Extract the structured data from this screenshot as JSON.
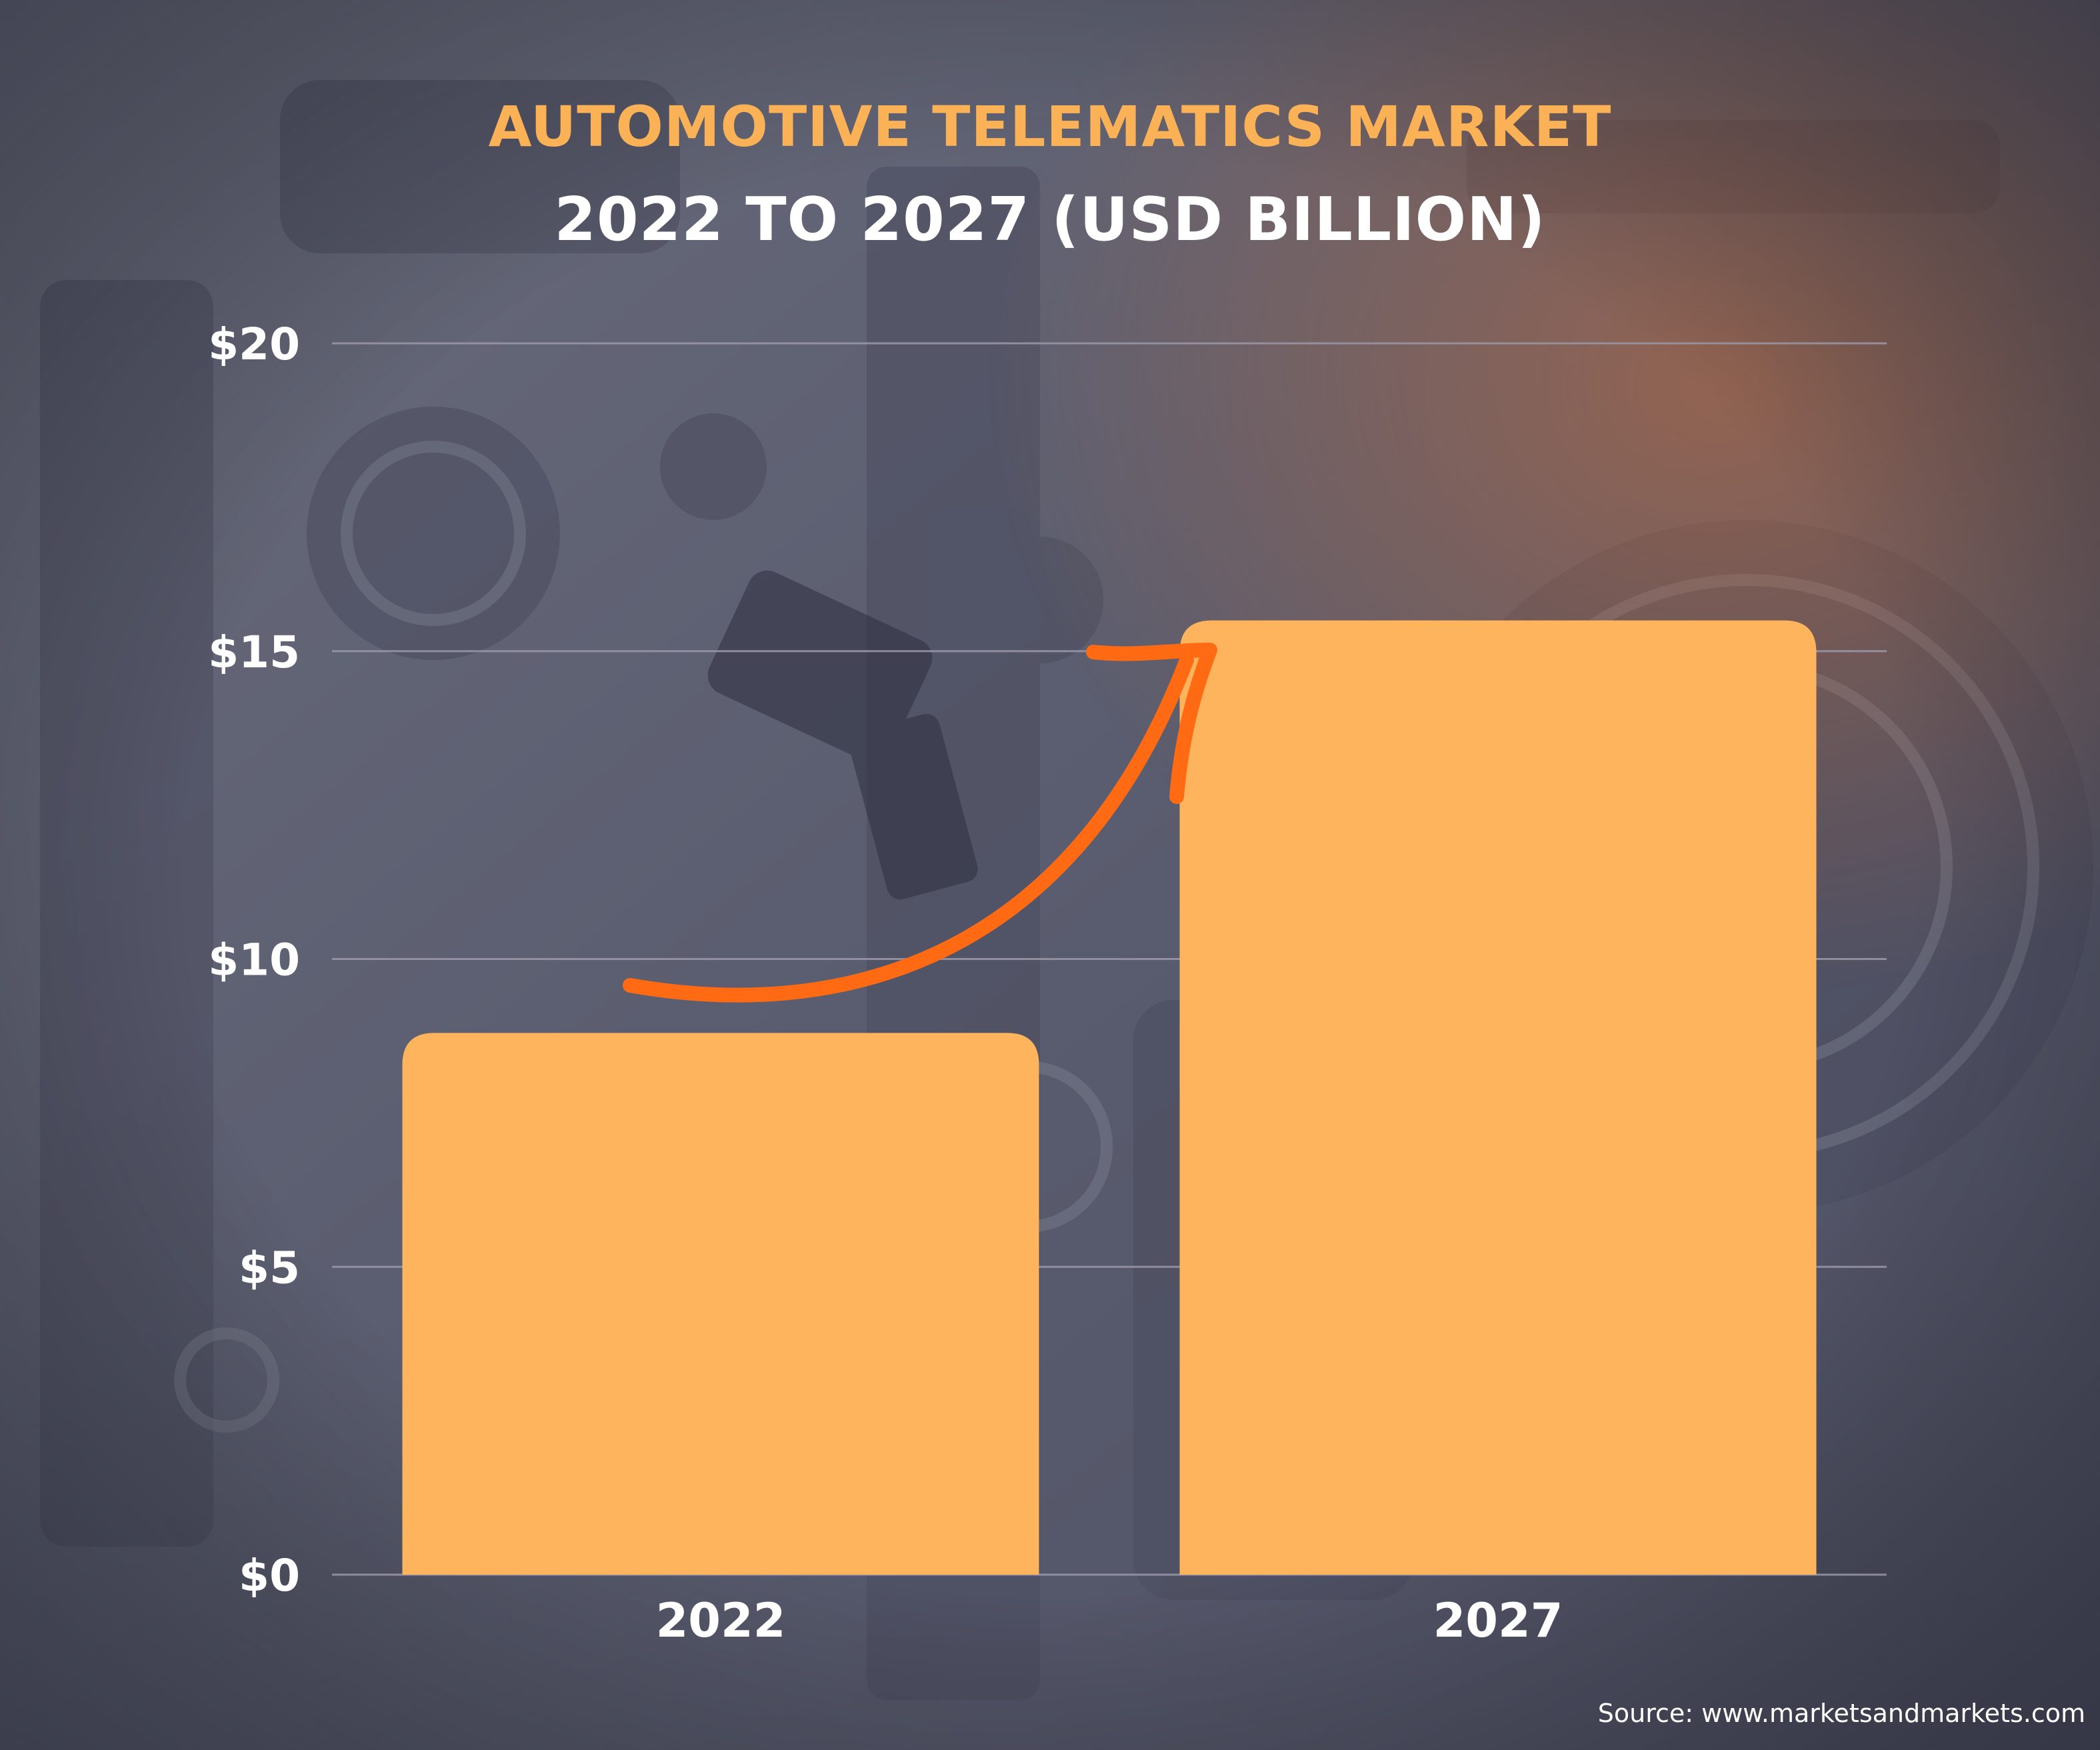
{
  "title": "AUTOMOTIVE TELEMATICS MARKET",
  "subtitle": "2022 TO 2027 (USD BILLION)",
  "source": "Source: www.marketsandmarkets.com",
  "background_icon": "engine-photo",
  "growth_arrow_icon": "curved-arrow-up-icon",
  "colors": {
    "title": "#FBB156",
    "subtitle": "#FFFFFF",
    "bar": "#FEB45C",
    "arrow": "#FF6A13",
    "axis_text": "#FFFFFF",
    "gridline": "#9A98A8",
    "source_text": "#FFFFFF",
    "background": "#5E6173"
  },
  "chart_data": {
    "type": "bar",
    "title": "AUTOMOTIVE TELEMATICS MARKET",
    "subtitle": "2022 TO 2027 (USD BILLION)",
    "categories": [
      "2022",
      "2027"
    ],
    "values": [
      8.8,
      15.5
    ],
    "ylim": [
      0,
      20
    ],
    "yticks": [
      0,
      5,
      10,
      15,
      20
    ],
    "ytick_labels": [
      "$0",
      "$5",
      "$10",
      "$15",
      "$20"
    ],
    "xlabel": "",
    "ylabel": "",
    "grid": true,
    "legend": false
  }
}
